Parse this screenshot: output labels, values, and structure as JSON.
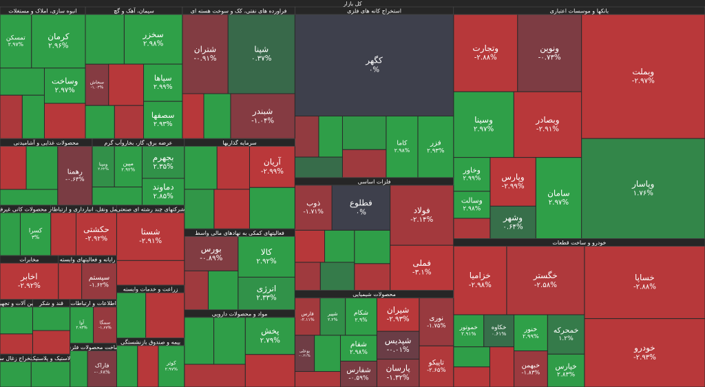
{
  "chart_data": {
    "type": "treemap",
    "title": "کل بازار",
    "sectors": [
      {
        "name": "بانکها و موسسات اعتباری",
        "tiles": [
          {
            "name": "وبملت",
            "value": -2.97,
            "value_label": "-۲.۹۷%",
            "size": 310
          },
          {
            "name": "وپاسار",
            "value": 1.76,
            "value_label": "۱.۷۶%",
            "size": 250
          },
          {
            "name": "ونوین",
            "value": -0.73,
            "value_label": "-۰.۷۳%",
            "size": 100
          },
          {
            "name": "وتجارت",
            "value": -2.88,
            "value_label": "-۲.۸۸%",
            "size": 100
          },
          {
            "name": "وبصادر",
            "value": -2.91,
            "value_label": "-۲.۹۱%",
            "size": 90
          },
          {
            "name": "وسینا",
            "value": 2.97,
            "value_label": "۲.۹۷%",
            "size": 80
          },
          {
            "name": "سامان",
            "value": 2.97,
            "value_label": "۲.۹۷%",
            "size": 75
          },
          {
            "name": "وپارس",
            "value": -2.99,
            "value_label": "-۲.۹۹%",
            "size": 45
          },
          {
            "name": "وشهر",
            "value": 0.64,
            "value_label": "۰.۶۴%",
            "size": 30
          },
          {
            "name": "وخاور",
            "value": 2.99,
            "value_label": "۲.۹۹%",
            "size": 25
          },
          {
            "name": "وسالت",
            "value": 2.98,
            "value_label": "۲.۹۸%",
            "size": 20
          },
          {
            "name": null,
            "value": -2.5,
            "size": 15
          }
        ]
      },
      {
        "name": "خودرو و ساخت قطعات",
        "tiles": [
          {
            "name": "خساپا",
            "value": -2.88,
            "value_label": "-۲.۸۸%",
            "size": 180
          },
          {
            "name": "خودرو",
            "value": -2.93,
            "value_label": "-۲.۹۳%",
            "size": 170
          },
          {
            "name": "خگستر",
            "value": -2.58,
            "value_label": "-۲.۵۸%",
            "size": 110
          },
          {
            "name": "خزامیا",
            "value": -2.98,
            "value_label": "-۲.۹۸%",
            "size": 75
          },
          {
            "name": "خمحرکه",
            "value": 1.2,
            "value_label": "۱.۲%",
            "size": 30
          },
          {
            "name": "خپارس",
            "value": 2.83,
            "value_label": "۲.۸۳%",
            "size": 25
          },
          {
            "name": "خنور",
            "value": 2.99,
            "value_label": "۲.۹۹%",
            "size": 25
          },
          {
            "name": "خبهمن",
            "value": -1.83,
            "value_label": "-۱.۸۳%",
            "size": 25
          },
          {
            "name": "خکاوه",
            "value": 0.61,
            "value_label": "۰.۶۱%",
            "size": 20
          },
          {
            "name": "خموتور",
            "value": 2.91,
            "value_label": "۲.۹۱%",
            "size": 20
          },
          {
            "name": null,
            "value": -2.9,
            "size": 20
          },
          {
            "name": null,
            "value": 2.9,
            "size": 15
          },
          {
            "name": null,
            "value": -2.9,
            "size": 15
          }
        ]
      },
      {
        "name": "استخراج کانه های فلزی",
        "tiles": [
          {
            "name": "کگهر",
            "value": 0,
            "value_label": "۰%",
            "size": 330
          },
          {
            "name": "فزر",
            "value": 2.93,
            "value_label": "۲.۹۳%",
            "size": 45
          },
          {
            "name": "کاما",
            "value": 2.98,
            "value_label": "۲.۹۸%",
            "size": 40
          },
          {
            "name": null,
            "value": 2.5,
            "size": 30
          },
          {
            "name": null,
            "value": -2,
            "size": 25
          },
          {
            "name": null,
            "value": 2.9,
            "size": 20
          },
          {
            "name": null,
            "value": -1.5,
            "size": 20
          },
          {
            "name": null,
            "value": 0.5,
            "size": 20
          }
        ]
      },
      {
        "name": "فلزات اساسی",
        "tiles": [
          {
            "name": "فولاد",
            "value": -2.14,
            "value_label": "-۲.۱۴%",
            "size": 80
          },
          {
            "name": "فملی",
            "value": -3.1,
            "value_label": "-۳.۱%",
            "size": 60
          },
          {
            "name": "فطلوع",
            "value": 0,
            "value_label": "۰%",
            "size": 55
          },
          {
            "name": "ذوب",
            "value": -1.71,
            "value_label": "-۱.۷۱%",
            "size": 35
          },
          {
            "name": null,
            "value": 2.9,
            "size": 25
          },
          {
            "name": null,
            "value": -2.5,
            "size": 20
          },
          {
            "name": null,
            "value": 2.9,
            "size": 20
          },
          {
            "name": null,
            "value": -2.9,
            "size": 20
          },
          {
            "name": null,
            "value": -2,
            "size": 15
          },
          {
            "name": null,
            "value": 1.2,
            "size": 20
          }
        ]
      },
      {
        "name": "محصولات شیمیایی",
        "tiles": [
          {
            "name": "نوری",
            "value": -1.75,
            "value_label": "-۱.۷۵%",
            "size": 35
          },
          {
            "name": "تاپیکو",
            "value": -2.65,
            "value_label": "-۲.۶۵%",
            "size": 30
          },
          {
            "name": "شیران",
            "value": -2.93,
            "value_label": "-۲.۹۳%",
            "size": 30
          },
          {
            "name": "شپدیس",
            "value": -0.01,
            "value_label": "-۰.۰۱%",
            "size": 25
          },
          {
            "name": "پارسان",
            "value": -1.32,
            "value_label": "-۱.۳۲%",
            "size": 25
          },
          {
            "name": "شکام",
            "value": 2.9,
            "value_label": "۲.۹%",
            "size": 25
          },
          {
            "name": "شپیر",
            "value": 2.2,
            "value_label": "۲.۲%",
            "size": 20
          },
          {
            "name": "فارس",
            "value": -2.11,
            "value_label": "-۲.۱۱%",
            "size": 20
          },
          {
            "name": "شفام",
            "value": 2.98,
            "value_label": "۲.۹۸%",
            "size": 20
          },
          {
            "name": "شفارس",
            "value": -0.59,
            "value_label": "-۰.۵۹%",
            "size": 20
          },
          {
            "name": "بوعلی",
            "value": -0.21,
            "value_label": "-۰.۲۱%",
            "size": 15
          },
          {
            "name": null,
            "value": -2.5,
            "size": 15
          },
          {
            "name": null,
            "value": 2.9,
            "size": 20
          }
        ]
      },
      {
        "name": "فراورده های نفتی، کک و سوخت هسته ای",
        "tiles": [
          {
            "name": "شپنا",
            "value": 0.37,
            "value_label": "۰.۳۷%",
            "size": 110
          },
          {
            "name": "شتران",
            "value": -0.91,
            "value_label": "-۰.۹۱%",
            "size": 75
          },
          {
            "name": "شبندر",
            "value": -1.04,
            "value_label": "-۱.۰۴%",
            "size": 60
          },
          {
            "name": null,
            "value": 2.9,
            "size": 25
          },
          {
            "name": null,
            "value": -2.9,
            "size": 20
          }
        ]
      },
      {
        "name": "سیمان، آهک و گچ",
        "tiles": [
          {
            "name": "سخزر",
            "value": 2.98,
            "value_label": "۲.۹۸%",
            "size": 60
          },
          {
            "name": "سپاها",
            "value": 2.99,
            "value_label": "۲.۹۹%",
            "size": 30
          },
          {
            "name": "سصفها",
            "value": 2.93,
            "value_label": "۲.۹۳%",
            "size": 30
          },
          {
            "name": "سخاش",
            "value": -1.03,
            "value_label": "-۱.۰۳%",
            "size": 20
          },
          {
            "name": null,
            "value": 2.9,
            "size": 40
          },
          {
            "name": null,
            "value": -2.9,
            "size": 30
          },
          {
            "name": null,
            "value": -2.5,
            "size": 20
          },
          {
            "name": null,
            "value": 2.9,
            "size": 20
          }
        ]
      },
      {
        "name": "انبوه سازی، املاک و مستغلات",
        "tiles": [
          {
            "name": "کرمان",
            "value": 2.96,
            "value_label": "۲.۹۶%",
            "size": 60
          },
          {
            "name": "تمسکن",
            "value": 2.97,
            "value_label": "۲.۹۷%",
            "size": 35
          },
          {
            "name": "وساخت",
            "value": 2.97,
            "value_label": "۲.۹۷%",
            "size": 30
          },
          {
            "name": null,
            "value": -2.9,
            "size": 30
          },
          {
            "name": null,
            "value": 2.9,
            "size": 25
          },
          {
            "name": null,
            "value": 2.9,
            "size": 20
          },
          {
            "name": null,
            "value": -2.5,
            "size": 20
          }
        ]
      },
      {
        "name": "سرمایه گذاریها",
        "tiles": [
          {
            "name": "آریان",
            "value": -2.99,
            "value_label": "-۲.۹۹%",
            "size": 40
          },
          {
            "name": null,
            "value": 2.9,
            "size": 40
          },
          {
            "name": null,
            "value": -2.9,
            "size": 30
          },
          {
            "name": null,
            "value": 2.9,
            "size": 30
          },
          {
            "name": null,
            "value": -2.9,
            "size": 30
          },
          {
            "name": null,
            "value": 2.5,
            "size": 25
          }
        ]
      },
      {
        "name": "فعالیتهای کمکی به نهادهای مالی واسط",
        "tiles": [
          {
            "name": "کالا",
            "value": 2.92,
            "value_label": "۲.۹۲%",
            "size": 50
          },
          {
            "name": "انرژی",
            "value": 2.33,
            "value_label": "۲.۳۳%",
            "size": 40
          },
          {
            "name": "بورس",
            "value": -0.89,
            "value_label": "-۰.۸۹%",
            "size": 40
          },
          {
            "name": null,
            "value": 2.9,
            "size": 25
          },
          {
            "name": null,
            "value": -2,
            "size": 20
          }
        ]
      },
      {
        "name": "مواد و محصولات دارویی",
        "tiles": [
          {
            "name": "پخش",
            "value": 2.79,
            "value_label": "۲.۷۹%",
            "size": 40
          },
          {
            "name": null,
            "value": -2.9,
            "size": 35
          },
          {
            "name": null,
            "value": 2.9,
            "size": 30
          },
          {
            "name": null,
            "value": -2.5,
            "size": 30
          },
          {
            "name": null,
            "value": 2.9,
            "size": 32
          }
        ]
      },
      {
        "name": "عرضه برق، گاز، بخاروآب گرم",
        "tiles": [
          {
            "name": "بجهرم",
            "value": 2.35,
            "value_label": "۲.۳۵%",
            "size": 30
          },
          {
            "name": "دماوند",
            "value": 2.85,
            "value_label": "۲.۸۵%",
            "size": 25
          },
          {
            "name": "مپین",
            "value": 2.92,
            "value_label": "۲.۹۲%",
            "size": 25
          },
          {
            "name": "ومپنا",
            "value": 2.22,
            "value_label": "۲.۲۲%",
            "size": 20
          },
          {
            "name": null,
            "value": 2.9,
            "size": 20
          }
        ]
      },
      {
        "name": "شرکتهای چند رشته ای صنعتی",
        "tiles": [
          {
            "name": "شستا",
            "value": -2.91,
            "value_label": "-۲.۹۱%",
            "size": 70
          },
          {
            "name": null,
            "value": -2.9,
            "size": 36
          }
        ]
      },
      {
        "name": "محصولات غذایی و آشامیدنی",
        "tiles": [
          {
            "name": "رهمنا",
            "value": -0.63,
            "value_label": "-۰.۶۳%",
            "size": 45
          },
          {
            "name": null,
            "value": 2.9,
            "size": 30
          },
          {
            "name": null,
            "value": -2.9,
            "size": 25
          },
          {
            "name": null,
            "value": 2.9,
            "size": 20
          }
        ]
      },
      {
        "name": "زراعت و خدمات وابسته",
        "tiles": [
          {
            "name": null,
            "value": -2.9,
            "size": 40
          },
          {
            "name": null,
            "value": 2.9,
            "size": 30
          }
        ]
      },
      {
        "name": "بیمه و صندوق بازنشستگی",
        "tiles": [
          {
            "name": "کوثر",
            "value": 2.97,
            "value_label": "۲.۹۷%",
            "size": 25
          },
          {
            "name": null,
            "value": -2.9,
            "size": 20
          },
          {
            "name": null,
            "value": 2.9,
            "size": 20
          }
        ]
      },
      {
        "name": "حمل ونقل، انبارداری و ارتباطات",
        "tiles": [
          {
            "name": "حکشتی",
            "value": -2.92,
            "value_label": "-۲.۹۲%",
            "size": 40
          },
          {
            "name": null,
            "value": -2.9,
            "size": 25
          }
        ]
      },
      {
        "name": "سایر محصولات کانی غیرفلزی",
        "tiles": [
          {
            "name": "کسرا",
            "value": 3,
            "value_label": "۳%",
            "size": 30
          },
          {
            "name": null,
            "value": 2.9,
            "size": 20
          }
        ]
      },
      {
        "name": "رایانه و فعالیتهای وابسته",
        "tiles": [
          {
            "name": "سیستم",
            "value": -1.62,
            "value_label": "-۱.۶۲%",
            "size": 30
          },
          {
            "name": null,
            "value": -2.9,
            "size": 20
          }
        ]
      },
      {
        "name": "مخابرات",
        "tiles": [
          {
            "name": "اخابر",
            "value": -2.92,
            "value_label": "-۲.۹۲%",
            "size": 50
          }
        ]
      },
      {
        "name": "اطلاعات و ارتباطات",
        "tiles": [
          {
            "name": "سمگا",
            "value": -1.67,
            "value_label": "-۱.۶۷%",
            "size": 20
          },
          {
            "name": "آوا",
            "value": 2.93,
            "value_label": "۲.۹۳%",
            "size": 20
          }
        ]
      },
      {
        "name": "ساخت محصولات فلزی",
        "tiles": [
          {
            "name": "فاراک",
            "value": -0.68,
            "value_label": "-۰.۶۸%",
            "size": 25
          },
          {
            "name": null,
            "value": 2.9,
            "size": 15
          }
        ]
      },
      {
        "name": "قند و شکر",
        "tiles": [
          {
            "name": null,
            "value": 2.9,
            "size": 20
          },
          {
            "name": null,
            "value": -2.9,
            "size": 20
          }
        ]
      },
      {
        "name": "ماشین آلات و تجهیزات",
        "tiles": [
          {
            "name": null,
            "value": 2.9,
            "size": 20
          },
          {
            "name": null,
            "value": -2.9,
            "size": 15
          }
        ]
      },
      {
        "name": "لاستیک و پلاستیک",
        "tiles": [
          {
            "name": null,
            "value": 2.9,
            "size": 25
          }
        ]
      },
      {
        "name": "استخراج زغال سنگ",
        "tiles": [
          {
            "name": null,
            "value": 2.9,
            "size": 20
          }
        ]
      }
    ]
  }
}
